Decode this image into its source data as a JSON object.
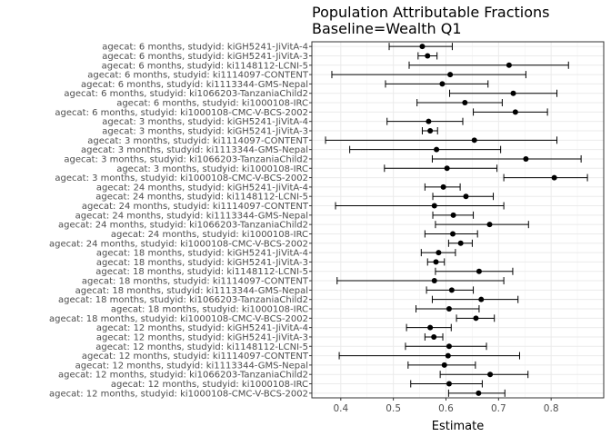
{
  "chart_data": {
    "type": "forest",
    "title": "Population Attributable Fractions",
    "subtitle": "Baseline=Wealth Q1",
    "xlabel": "Estimate",
    "ylabel": "",
    "xlim": [
      0.345,
      0.9
    ],
    "xticks": [
      "0.4",
      "0.5",
      "0.6",
      "0.7",
      "0.8"
    ],
    "grid": true,
    "legend": "none",
    "rows": [
      {
        "label": "agecat: 6 months, studyid: kiGH5241-JiVitA-4",
        "est": 0.555,
        "lo": 0.492,
        "hi": 0.612
      },
      {
        "label": "agecat: 6 months, studyid: kiGH5241-JiVitA-3",
        "est": 0.565,
        "lo": 0.547,
        "hi": 0.583
      },
      {
        "label": "agecat: 6 months, studyid: ki1148112-LCNI-5",
        "est": 0.72,
        "lo": 0.53,
        "hi": 0.833
      },
      {
        "label": "agecat: 6 months, studyid: ki1114097-CONTENT",
        "est": 0.608,
        "lo": 0.383,
        "hi": 0.752
      },
      {
        "label": "agecat: 6 months, studyid: ki1113344-GMS-Nepal",
        "est": 0.593,
        "lo": 0.485,
        "hi": 0.68
      },
      {
        "label": "agecat: 6 months, studyid: ki1066203-TanzaniaChild2",
        "est": 0.728,
        "lo": 0.607,
        "hi": 0.811
      },
      {
        "label": "agecat: 6 months, studyid: ki1000108-IRC",
        "est": 0.636,
        "lo": 0.545,
        "hi": 0.707
      },
      {
        "label": "agecat: 6 months, studyid: ki1000108-CMC-V-BCS-2002",
        "est": 0.732,
        "lo": 0.652,
        "hi": 0.793
      },
      {
        "label": "agecat: 3 months, studyid: kiGH5241-JiVitA-4",
        "est": 0.567,
        "lo": 0.488,
        "hi": 0.632
      },
      {
        "label": "agecat: 3 months, studyid: kiGH5241-JiVitA-3",
        "est": 0.57,
        "lo": 0.555,
        "hi": 0.584
      },
      {
        "label": "agecat: 3 months, studyid: ki1114097-CONTENT",
        "est": 0.654,
        "lo": 0.371,
        "hi": 0.811
      },
      {
        "label": "agecat: 3 months, studyid: ki1113344-GMS-Nepal",
        "est": 0.582,
        "lo": 0.417,
        "hi": 0.704
      },
      {
        "label": "agecat: 3 months, studyid: ki1066203-TanzaniaChild2",
        "est": 0.752,
        "lo": 0.574,
        "hi": 0.857
      },
      {
        "label": "agecat: 3 months, studyid: ki1000108-IRC",
        "est": 0.602,
        "lo": 0.483,
        "hi": 0.697
      },
      {
        "label": "agecat: 3 months, studyid: ki1000108-CMC-V-BCS-2002",
        "est": 0.806,
        "lo": 0.71,
        "hi": 0.869
      },
      {
        "label": "agecat: 24 months, studyid: kiGH5241-JiVitA-4",
        "est": 0.595,
        "lo": 0.56,
        "hi": 0.627
      },
      {
        "label": "agecat: 24 months, studyid: ki1148112-LCNI-5",
        "est": 0.638,
        "lo": 0.575,
        "hi": 0.69
      },
      {
        "label": "agecat: 24 months, studyid: ki1114097-CONTENT",
        "est": 0.578,
        "lo": 0.39,
        "hi": 0.71
      },
      {
        "label": "agecat: 24 months, studyid: ki1113344-GMS-Nepal",
        "est": 0.614,
        "lo": 0.575,
        "hi": 0.652
      },
      {
        "label": "agecat: 24 months, studyid: ki1066203-TanzaniaChild2",
        "est": 0.683,
        "lo": 0.58,
        "hi": 0.757
      },
      {
        "label": "agecat: 24 months, studyid: ki1000108-IRC",
        "est": 0.613,
        "lo": 0.56,
        "hi": 0.66
      },
      {
        "label": "agecat: 24 months, studyid: ki1000108-CMC-V-BCS-2002",
        "est": 0.628,
        "lo": 0.605,
        "hi": 0.65
      },
      {
        "label": "agecat: 18 months, studyid: kiGH5241-JiVitA-4",
        "est": 0.586,
        "lo": 0.553,
        "hi": 0.618
      },
      {
        "label": "agecat: 18 months, studyid: kiGH5241-JiVitA-3",
        "est": 0.581,
        "lo": 0.565,
        "hi": 0.597
      },
      {
        "label": "agecat: 18 months, studyid: ki1148112-LCNI-5",
        "est": 0.663,
        "lo": 0.58,
        "hi": 0.727
      },
      {
        "label": "agecat: 18 months, studyid: ki1114097-CONTENT",
        "est": 0.578,
        "lo": 0.393,
        "hi": 0.71
      },
      {
        "label": "agecat: 18 months, studyid: ki1113344-GMS-Nepal",
        "est": 0.611,
        "lo": 0.563,
        "hi": 0.652
      },
      {
        "label": "agecat: 18 months, studyid: ki1066203-TanzaniaChild2",
        "est": 0.667,
        "lo": 0.574,
        "hi": 0.737
      },
      {
        "label": "agecat: 18 months, studyid: ki1000108-IRC",
        "est": 0.606,
        "lo": 0.543,
        "hi": 0.663
      },
      {
        "label": "agecat: 18 months, studyid: ki1000108-CMC-V-BCS-2002",
        "est": 0.657,
        "lo": 0.62,
        "hi": 0.692
      },
      {
        "label": "agecat: 12 months, studyid: kiGH5241-JiVitA-4",
        "est": 0.57,
        "lo": 0.525,
        "hi": 0.61
      },
      {
        "label": "agecat: 12 months, studyid: kiGH5241-JiVitA-3",
        "est": 0.577,
        "lo": 0.56,
        "hi": 0.594
      },
      {
        "label": "agecat: 12 months, studyid: ki1148112-LCNI-5",
        "est": 0.606,
        "lo": 0.523,
        "hi": 0.677
      },
      {
        "label": "agecat: 12 months, studyid: ki1114097-CONTENT",
        "est": 0.604,
        "lo": 0.397,
        "hi": 0.74
      },
      {
        "label": "agecat: 12 months, studyid: ki1113344-GMS-Nepal",
        "est": 0.597,
        "lo": 0.528,
        "hi": 0.656
      },
      {
        "label": "agecat: 12 months, studyid: ki1066203-TanzaniaChild2",
        "est": 0.684,
        "lo": 0.589,
        "hi": 0.756
      },
      {
        "label": "agecat: 12 months, studyid: ki1000108-IRC",
        "est": 0.606,
        "lo": 0.533,
        "hi": 0.669
      },
      {
        "label": "agecat: 12 months, studyid: ki1000108-CMC-V-BCS-2002",
        "est": 0.662,
        "lo": 0.605,
        "hi": 0.712
      }
    ]
  }
}
